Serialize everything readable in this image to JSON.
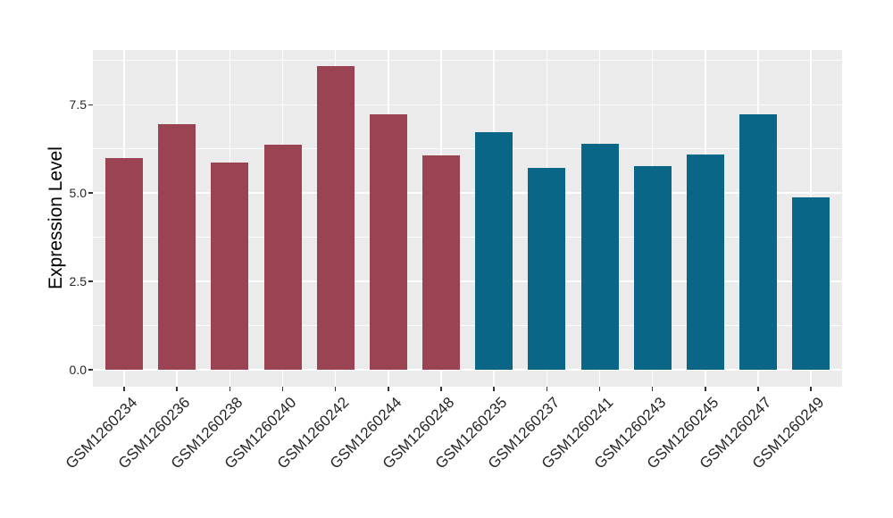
{
  "chart_data": {
    "type": "bar",
    "title": "",
    "xlabel": "",
    "ylabel": "Expression Level",
    "categories": [
      "GSM1260234",
      "GSM1260236",
      "GSM1260238",
      "GSM1260240",
      "GSM1260242",
      "GSM1260244",
      "GSM1260248",
      "GSM1260235",
      "GSM1260237",
      "GSM1260241",
      "GSM1260243",
      "GSM1260245",
      "GSM1260247",
      "GSM1260249"
    ],
    "values": [
      6.0,
      6.95,
      5.87,
      6.37,
      8.6,
      7.24,
      6.07,
      6.72,
      5.72,
      6.4,
      5.76,
      6.1,
      7.23,
      4.87
    ],
    "bar_colors": [
      "#9A4453",
      "#9A4453",
      "#9A4453",
      "#9A4453",
      "#9A4453",
      "#9A4453",
      "#9A4453",
      "#0A6687",
      "#0A6687",
      "#0A6687",
      "#0A6687",
      "#0A6687",
      "#0A6687",
      "#0A6687"
    ],
    "group_colors": {
      "left_group": "#9A4453",
      "right_group": "#0A6687"
    },
    "yticks": [
      0.0,
      2.5,
      5.0,
      7.5
    ],
    "ytick_labels": [
      "0.0",
      "2.5",
      "5.0",
      "7.5"
    ],
    "yminor_ticks": [
      1.25,
      3.75,
      6.25,
      8.75
    ],
    "ylim": [
      -0.48,
      9.05
    ],
    "grid": true,
    "legend": false,
    "panel_bg": "#EBEBEB",
    "grid_color": "#FFFFFF"
  }
}
